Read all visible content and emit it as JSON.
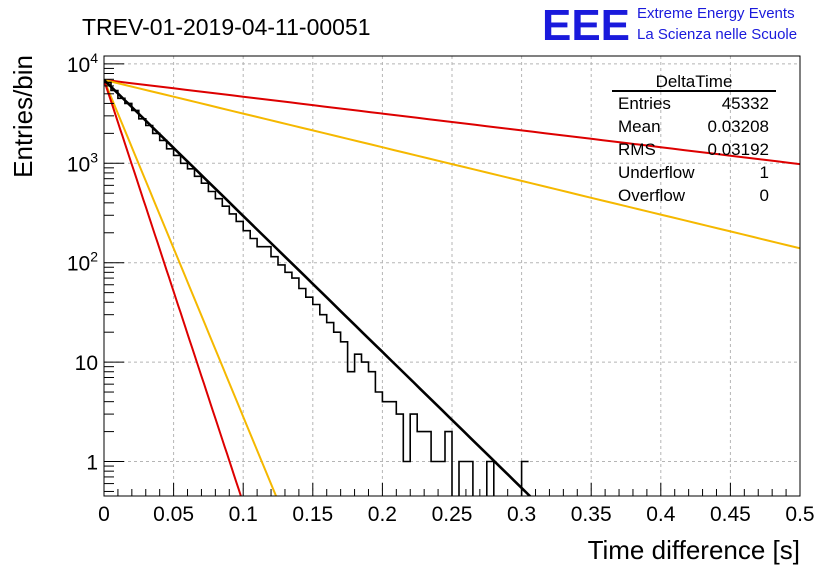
{
  "header": {
    "run_title": "TREV-01-2019-04-11-00051",
    "logo_text": "EEE",
    "logo_line1": "Extreme Energy Events",
    "logo_line2": "La Scienza nelle Scuole"
  },
  "stats_box": {
    "title": "DeltaTime",
    "rows": [
      {
        "label": "Entries",
        "value": "45332"
      },
      {
        "label": "Mean",
        "value": "0.03208"
      },
      {
        "label": "RMS",
        "value": "0.03192"
      },
      {
        "label": "Underflow",
        "value": "1"
      },
      {
        "label": "Overflow",
        "value": "0"
      }
    ]
  },
  "colors": {
    "histogram": "#000000",
    "fit": "#000000",
    "red_line": "#dd0000",
    "yellow_line": "#f5b800",
    "grid": "#b5b5b5",
    "logo": "#1a1adc"
  },
  "chart_data": {
    "type": "line",
    "xlabel": "Time difference [s]",
    "ylabel": "Entries/bin",
    "xlim": [
      0,
      0.5
    ],
    "ylim": [
      0.45,
      12000
    ],
    "y_scale": "log",
    "grid": true,
    "x_ticks": [
      {
        "v": 0,
        "label": "0"
      },
      {
        "v": 0.05,
        "label": "0.05"
      },
      {
        "v": 0.1,
        "label": "0.1"
      },
      {
        "v": 0.15,
        "label": "0.15"
      },
      {
        "v": 0.2,
        "label": "0.2"
      },
      {
        "v": 0.25,
        "label": "0.25"
      },
      {
        "v": 0.3,
        "label": "0.3"
      },
      {
        "v": 0.35,
        "label": "0.35"
      },
      {
        "v": 0.4,
        "label": "0.4"
      },
      {
        "v": 0.45,
        "label": "0.45"
      },
      {
        "v": 0.5,
        "label": "0.5"
      }
    ],
    "y_ticks": [
      {
        "v": 1,
        "label": "1"
      },
      {
        "v": 10,
        "label": "10"
      },
      {
        "v": 100,
        "label": "10",
        "sup": "2"
      },
      {
        "v": 1000,
        "label": "10",
        "sup": "3"
      },
      {
        "v": 10000,
        "label": "10",
        "sup": "4"
      }
    ],
    "histogram": {
      "bin_width": 0.005,
      "counts": [
        6500,
        5400,
        4500,
        4000,
        3400,
        2800,
        2400,
        2000,
        1700,
        1400,
        1200,
        1000,
        880,
        740,
        630,
        520,
        440,
        370,
        310,
        260,
        210,
        175,
        145,
        145,
        115,
        95,
        80,
        70,
        55,
        45,
        38,
        30,
        25,
        20,
        16,
        8,
        12,
        10,
        8,
        5,
        4,
        4,
        3,
        1,
        3,
        2,
        2,
        1,
        1,
        2,
        0,
        1,
        1,
        0,
        0,
        1,
        0,
        0,
        0,
        0,
        1
      ]
    },
    "fit": {
      "amplitude": 6900,
      "slope": -31.5,
      "x_range": [
        0,
        0.31
      ]
    },
    "reference_lines": [
      {
        "color_key": "red_line",
        "amplitude": 6900,
        "slope": -3.9,
        "x_range": [
          0,
          0.5
        ]
      },
      {
        "color_key": "yellow_line",
        "amplitude": 6900,
        "slope": -7.8,
        "x_range": [
          0,
          0.5
        ]
      },
      {
        "color_key": "yellow_line",
        "amplitude": 6900,
        "slope": -78,
        "x_range": [
          0,
          0.125
        ]
      },
      {
        "color_key": "red_line",
        "amplitude": 6900,
        "slope": -98,
        "x_range": [
          0,
          0.1
        ]
      }
    ]
  }
}
